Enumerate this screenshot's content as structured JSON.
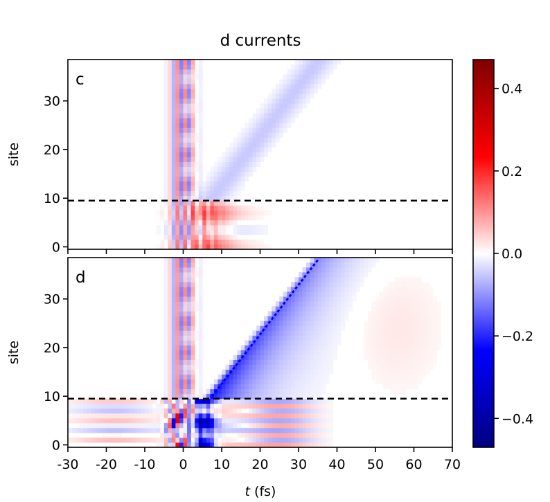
{
  "chart_data": {
    "type": "heatmap",
    "title": "d currents",
    "xlabel": "t (fs)",
    "xlabel_italic": "t",
    "xlabel_unit": " (fs)",
    "ylabel": "site",
    "x_ticks": [
      "-30",
      "-20",
      "-10",
      "0",
      "10",
      "20",
      "30",
      "40",
      "50",
      "60",
      "70"
    ],
    "x_range": [
      -30,
      70
    ],
    "y_range": [
      0,
      38
    ],
    "y_ticks": [
      "0",
      "10",
      "20",
      "30"
    ],
    "colormap": "seismic",
    "colorbar": {
      "range": [
        -0.47,
        0.47
      ],
      "ticks": [
        "0.4",
        "0.2",
        "0.0",
        "−0.2",
        "−0.4"
      ],
      "tick_values": [
        0.4,
        0.2,
        0.0,
        -0.2,
        -0.4
      ]
    },
    "panels": [
      {
        "label": "c",
        "dashed_line_site": 9.5
      },
      {
        "label": "d",
        "dashed_line_site": 9.5,
        "front_line": {
          "from": [
            7.5,
            10
          ],
          "to": [
            35,
            38
          ],
          "color": "#0000ff"
        }
      }
    ]
  }
}
